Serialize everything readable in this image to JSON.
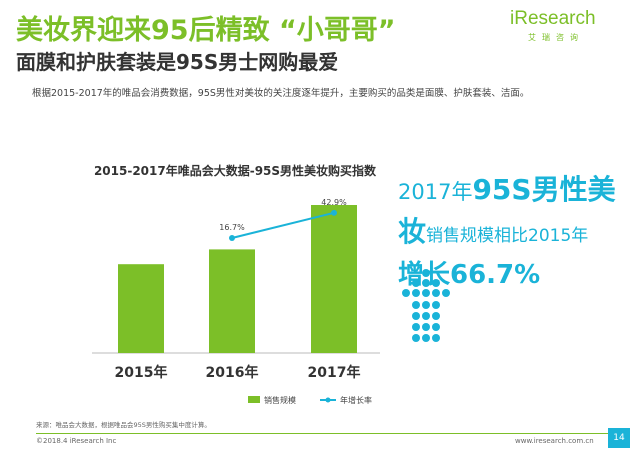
{
  "header": {
    "title": "美妆界迎来95后精致 “小哥哥”",
    "subtitle": "面膜和护肤套装是95S男士网购最爱",
    "description": "根据2015-2017年的唯品会消费数据，95S男性对美妆的关注度逐年提升，主要购买的品类是面膜、护肤套装、洁面。"
  },
  "logo": {
    "main": "iResearch",
    "sub": "艾瑞咨询"
  },
  "chart_data": {
    "type": "bar",
    "title": "2015-2017年唯品会大数据-95S男性美妆购买指数",
    "categories": [
      "2015年",
      "2016年",
      "2017年"
    ],
    "series": [
      {
        "name": "销售规模",
        "type": "bar",
        "values": [
          0.6,
          0.7,
          1.0
        ],
        "color": "#7cbf28"
      },
      {
        "name": "年增长率",
        "type": "line",
        "values": [
          null,
          16.7,
          42.9
        ],
        "labels": [
          "",
          "16.7%",
          "42.9%"
        ],
        "color": "#1ab3d8"
      }
    ],
    "legend": {
      "position": "bottom"
    },
    "grid": false
  },
  "highlight": {
    "line1_prefix": "2017年",
    "line1_big": "95S男性美",
    "line2_big": "妆",
    "line2_rest": "销售规模相比2015年",
    "line3": "增长66.7%"
  },
  "footer": {
    "source": "来源：唯品会大数据，根据唯品会95S男性购买集中度计算。",
    "copyright": "©2018.4 iResearch Inc",
    "website": "www.iresearch.com.cn",
    "page": "14"
  },
  "colors": {
    "green": "#7cbf28",
    "blue": "#1ab3d8"
  }
}
